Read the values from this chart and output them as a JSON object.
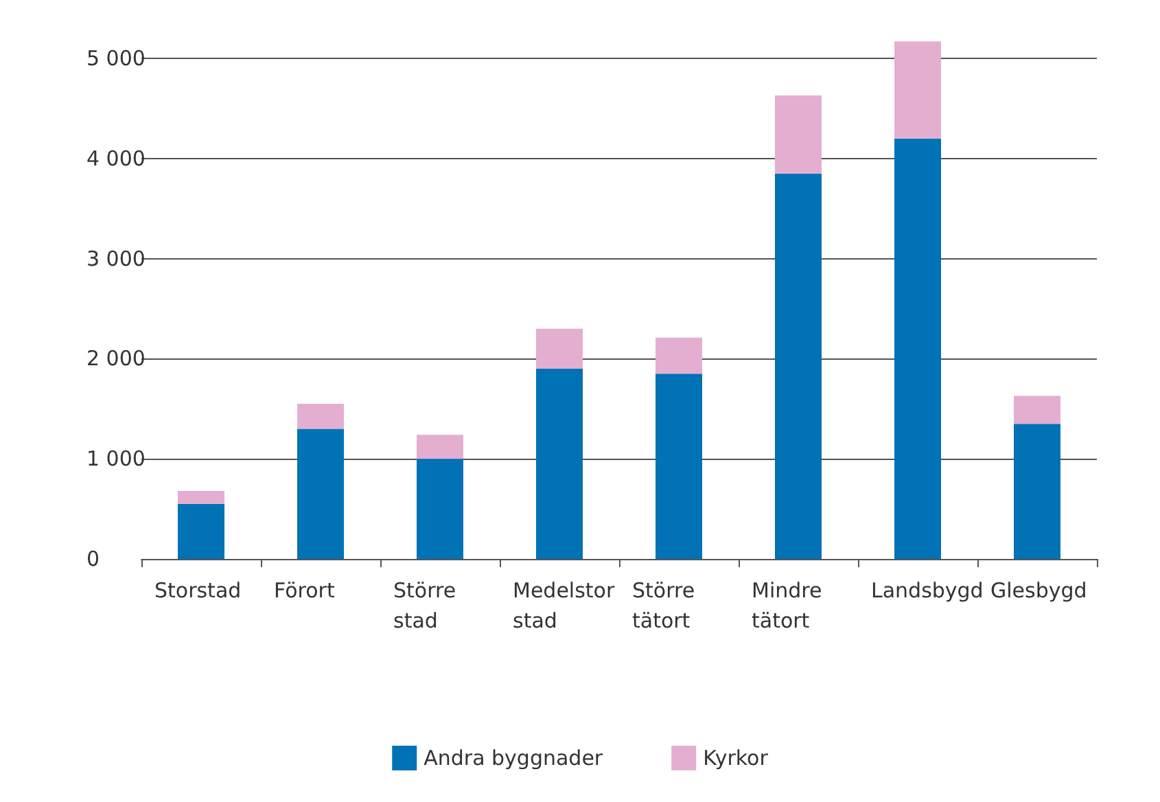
{
  "chart_data": {
    "type": "bar",
    "stacked": true,
    "categories": [
      "Storstad",
      "Förort",
      "Större\nstad",
      "Medelstor\nstad",
      "Större\ntätort",
      "Mindre\ntätort",
      "Landsbygd",
      "Glesbygd"
    ],
    "series": [
      {
        "name": "Andra byggnader",
        "color": "#0072b5",
        "values": [
          550,
          1300,
          1000,
          1900,
          1850,
          3850,
          4200,
          1350
        ]
      },
      {
        "name": "Kyrkor",
        "color": "#e4aed1",
        "values": [
          130,
          250,
          240,
          400,
          360,
          780,
          970,
          280
        ]
      }
    ],
    "ylim": [
      0,
      5200
    ],
    "yticks": [
      0,
      {
        "value": 1000,
        "label": "1 000"
      },
      {
        "value": 2000,
        "label": "2 000"
      },
      {
        "value": 3000,
        "label": "3 000"
      },
      {
        "value": 4000,
        "label": "4 000"
      },
      {
        "value": 5000,
        "label": "5 000"
      }
    ],
    "grid": "y",
    "legend": "bottom"
  }
}
